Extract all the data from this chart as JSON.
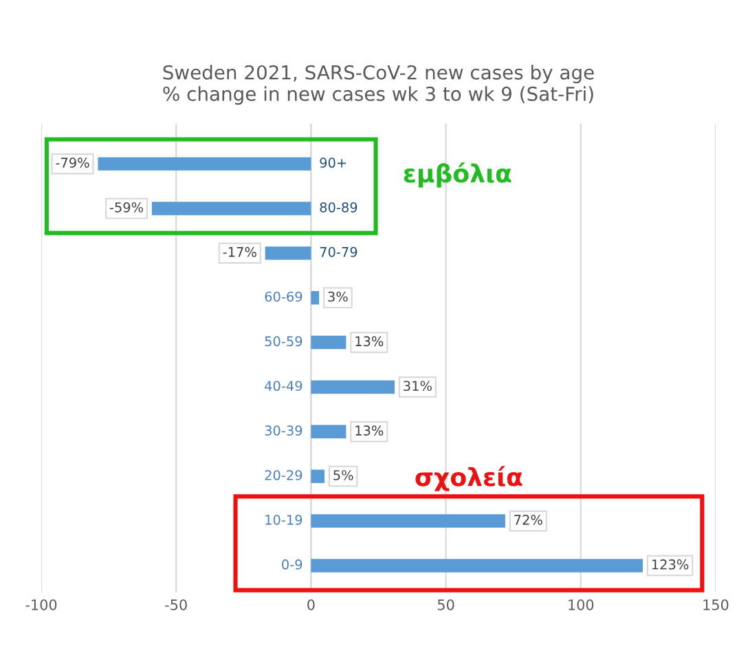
{
  "chart_data": {
    "type": "bar",
    "orientation": "horizontal",
    "title": "Sweden 2021, SARS-CoV-2 new cases by age\n% change in new cases wk 3 to wk 9 (Sat-Fri)",
    "categories": [
      "90+",
      "80-89",
      "70-79",
      "60-69",
      "50-59",
      "40-49",
      "30-39",
      "20-29",
      "10-19",
      "0-9"
    ],
    "values": [
      -79,
      -59,
      -17,
      3,
      13,
      31,
      13,
      5,
      72,
      123
    ],
    "value_labels": [
      "-79%",
      "-59%",
      "-17%",
      "3%",
      "13%",
      "31%",
      "13%",
      "5%",
      "72%",
      "123%"
    ],
    "color": "#5b9bd5",
    "xlim": [
      -100,
      150
    ],
    "xticks": [
      -100,
      -50,
      0,
      50,
      100,
      150
    ],
    "grid": "x",
    "annotations": [
      "εμβόλια",
      "σχολεία"
    ]
  }
}
